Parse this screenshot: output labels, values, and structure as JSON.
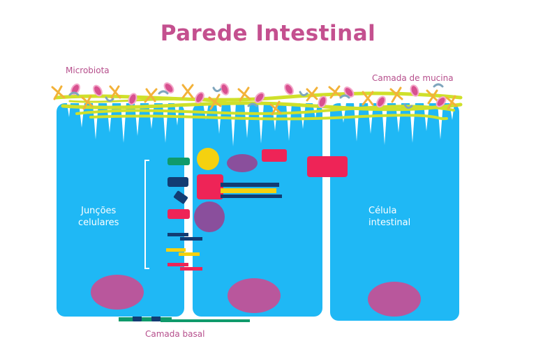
{
  "title": "Parede Intestinal",
  "labels": {
    "microbiota": "Microbiota",
    "mucin_layer": "Camada de mucina",
    "cell_junctions_line1": "Junções",
    "cell_junctions_line2": "celulares",
    "intestinal_cell_line1": "Célula",
    "intestinal_cell_line2": "intestinal",
    "basal_layer": "Camada basal"
  },
  "colors": {
    "title": "#c4508f",
    "cell": "#1fb8f5",
    "nucleus": "#b9579c",
    "mucin": "#cfe02a",
    "junction_green": "#0f9a6b",
    "junction_navy": "#123c73",
    "junction_red": "#ee2457",
    "junction_yellow": "#f5d10f",
    "purple": "#8a4f9c",
    "microbe_pink": "#d8508f",
    "microbe_orange": "#f3b239",
    "microbe_grey": "#7fa6bd"
  },
  "icons": [
    "microbe-icon",
    "mucin-strand",
    "cell-junction-icon",
    "nucleus-icon"
  ]
}
